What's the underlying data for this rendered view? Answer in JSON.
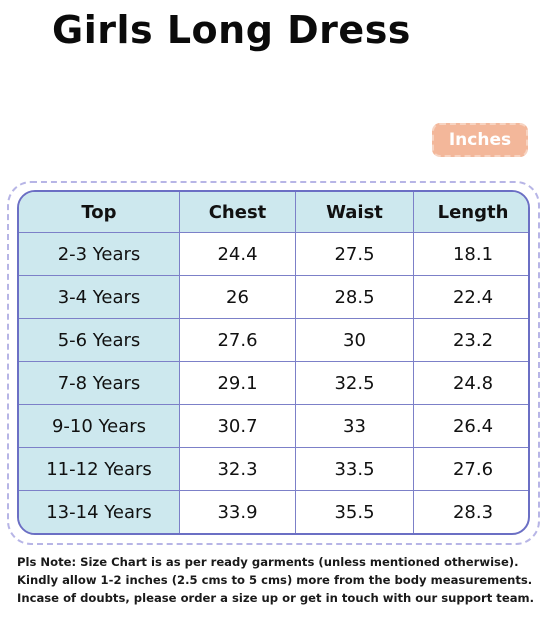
{
  "title": "Girls Long Dress",
  "unit_label": "Inches",
  "table": {
    "headers": [
      "Top",
      "Chest",
      "Waist",
      "Length"
    ],
    "rows": [
      [
        "2-3 Years",
        "24.4",
        "27.5",
        "18.1"
      ],
      [
        "3-4 Years",
        "26",
        "28.5",
        "22.4"
      ],
      [
        "5-6 Years",
        "27.6",
        "30",
        "23.2"
      ],
      [
        "7-8 Years",
        "29.1",
        "32.5",
        "24.8"
      ],
      [
        "9-10 Years",
        "30.7",
        "33",
        "26.4"
      ],
      [
        "11-12 Years",
        "32.3",
        "33.5",
        "27.6"
      ],
      [
        "13-14 Years",
        "33.9",
        "35.5",
        "28.3"
      ]
    ]
  },
  "notes": [
    "Pls Note: Size Chart is as per ready garments (unless mentioned otherwise).",
    "Kindly allow 1-2 inches (2.5 cms to 5 cms) more from the body measurements.",
    "Incase of doubts, please order a size up or get in touch with our support team."
  ]
}
